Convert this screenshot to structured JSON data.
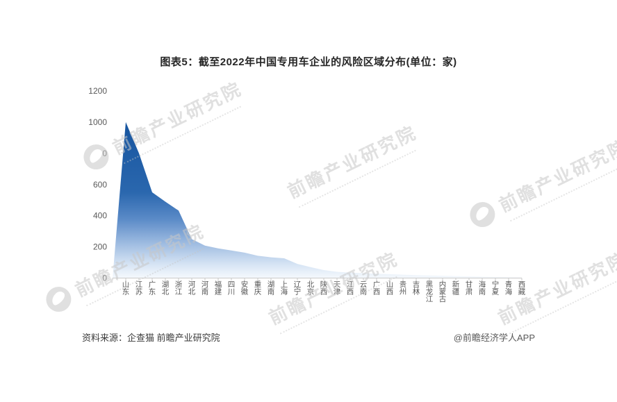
{
  "title": "图表5：截至2022年中国专用车企业的风险区域分布(单位：家)",
  "footer": {
    "source": "资料来源：企查猫 前瞻产业研究院",
    "credit": "@前瞻经济学人APP"
  },
  "watermark": {
    "text": "前瞻产业研究院"
  },
  "colors": {
    "axis": "#c9c9c9",
    "tick_label": "#595959",
    "area_top": "#17559F",
    "area_bottom": "#F5F9FD",
    "gradient_stops": [
      [
        "0%",
        "#17559F"
      ],
      [
        "45%",
        "#2A67AE"
      ],
      [
        "62%",
        "#5A8AC7"
      ],
      [
        "78%",
        "#9FBCE1"
      ],
      [
        "92%",
        "#D9E6F5"
      ],
      [
        "100%",
        "#F5F9FD"
      ]
    ]
  },
  "chart_data": {
    "type": "area",
    "title": "图表5：截至2022年中国专用车企业的风险区域分布(单位：家)",
    "xlabel": "",
    "ylabel": "",
    "ylim": [
      0,
      1200
    ],
    "yticks": [
      0,
      200,
      400,
      600,
      800,
      1000,
      1200
    ],
    "grid": false,
    "legend": false,
    "categories": [
      "山东",
      "江苏",
      "广东",
      "湖北",
      "浙江",
      "河北",
      "河南",
      "福建",
      "四川",
      "安徽",
      "重庆",
      "湖南",
      "上海",
      "辽宁",
      "北京",
      "陕西",
      "天津",
      "江西",
      "云南",
      "广西",
      "山西",
      "贵州",
      "吉林",
      "黑龙江",
      "内蒙古",
      "新疆",
      "甘肃",
      "海南",
      "宁夏",
      "青海",
      "西藏"
    ],
    "values": [
      1000,
      800,
      550,
      490,
      433,
      250,
      208,
      190,
      177,
      163,
      143,
      133,
      127,
      91,
      70,
      51,
      40,
      35,
      31,
      28,
      25,
      22,
      19,
      17,
      15,
      13,
      11,
      9,
      7,
      5,
      3
    ]
  }
}
